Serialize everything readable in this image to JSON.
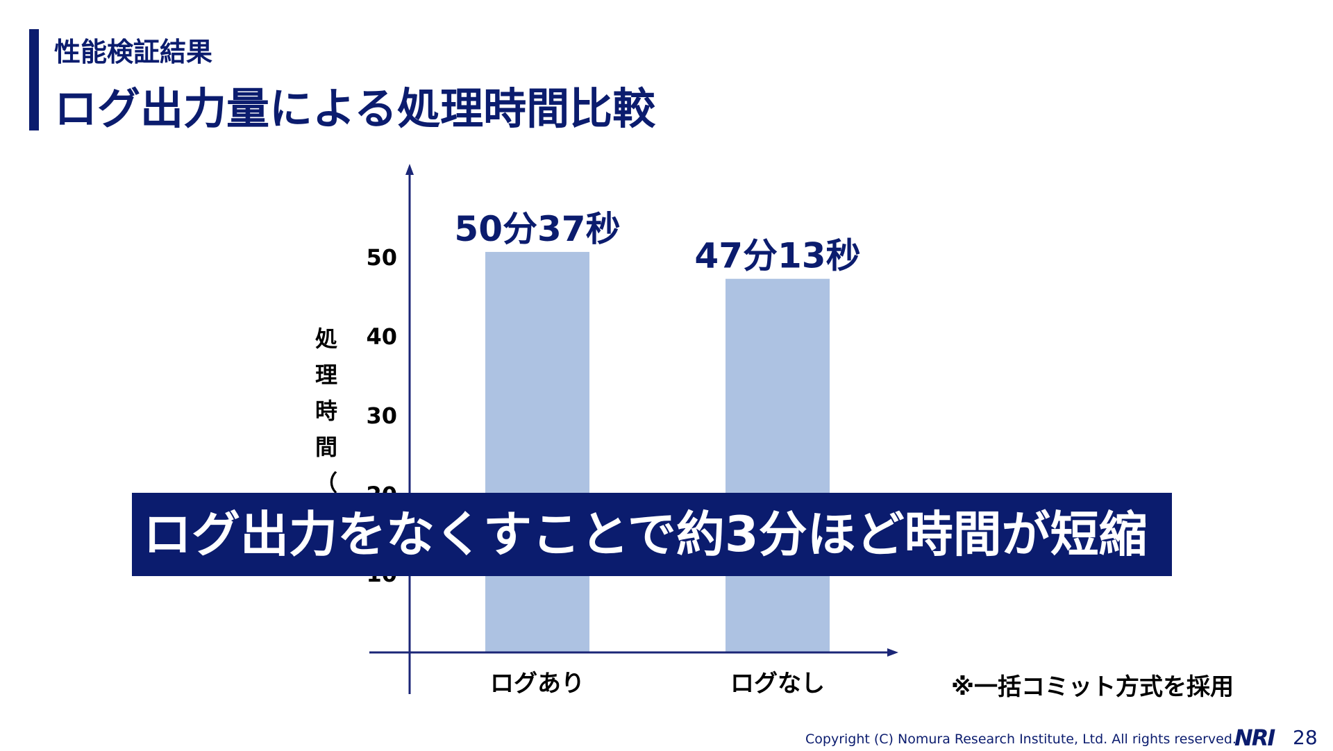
{
  "header": {
    "subtitle": "性能検証結果",
    "title": "ログ出力量による処理時間比較"
  },
  "chart_data": {
    "type": "bar",
    "title": "",
    "categories": [
      "ログあり",
      "ログなし"
    ],
    "values": [
      50.62,
      47.22
    ],
    "data_labels": [
      "50分37秒",
      "47分13秒"
    ],
    "ylabel": "処理時間（分）",
    "yticks": [
      10,
      20,
      30,
      40,
      50
    ],
    "ylim": [
      0,
      60
    ],
    "grid": false,
    "legend": "none"
  },
  "callout": {
    "text": "ログ出力をなくすことで約3分ほど時間が短縮"
  },
  "note": "※一括コミット方式を採用",
  "footer": {
    "copyright": "Copyright (C)  Nomura Research Institute, Ltd. All rights reserved.",
    "logo_text": "NRI",
    "page_number": "28"
  },
  "colors": {
    "brand": "#0b1c6e",
    "bar": "#adc2e2",
    "axis": "#1b2677"
  }
}
